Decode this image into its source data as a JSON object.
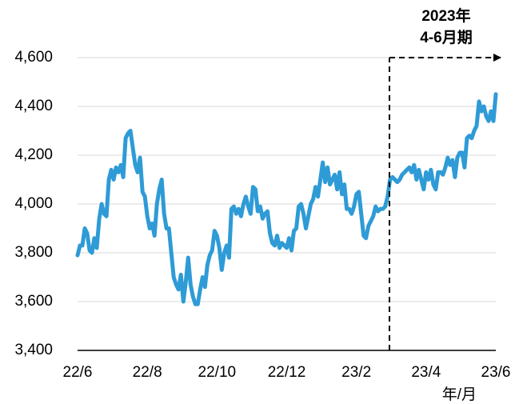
{
  "chart_data": {
    "type": "line",
    "categories": [
      "22/6",
      null,
      null,
      null,
      null,
      null,
      null,
      null,
      null,
      null,
      null,
      null,
      null,
      null,
      null,
      null,
      null,
      null,
      null,
      null,
      null,
      null,
      null,
      null,
      null,
      null,
      null,
      null,
      null,
      "22/8",
      null,
      null,
      null,
      null,
      null,
      null,
      null,
      null,
      null,
      null,
      null,
      null,
      null,
      null,
      null,
      null,
      null,
      null,
      null,
      null,
      null,
      null,
      null,
      null,
      null,
      null,
      null,
      null,
      "22/10",
      null,
      null,
      null,
      null,
      null,
      null,
      null,
      null,
      null,
      null,
      null,
      null,
      null,
      null,
      null,
      null,
      null,
      null,
      null,
      null,
      null,
      null,
      null,
      null,
      null,
      null,
      null,
      null,
      "22/12",
      null,
      null,
      null,
      null,
      null,
      null,
      null,
      null,
      null,
      null,
      null,
      null,
      null,
      null,
      null,
      null,
      null,
      null,
      null,
      null,
      null,
      null,
      null,
      null,
      null,
      null,
      null,
      null,
      "23/2",
      null,
      null,
      null,
      null,
      null,
      null,
      null,
      null,
      null,
      null,
      null,
      null,
      null,
      null,
      null,
      null,
      null,
      null,
      null,
      null,
      null,
      null,
      null,
      null,
      null,
      null,
      null,
      null,
      "23/4",
      null,
      null,
      null,
      null,
      null,
      null,
      null,
      null,
      null,
      null,
      null,
      null,
      null,
      null,
      null,
      null,
      null,
      null,
      null,
      null,
      null,
      null,
      null,
      null,
      null,
      null,
      null,
      null,
      "23/6"
    ],
    "values": [
      3790,
      3830,
      3830,
      3900,
      3880,
      3810,
      3800,
      3860,
      3820,
      3940,
      4000,
      3960,
      3950,
      4100,
      4140,
      4100,
      4150,
      4130,
      4160,
      4110,
      4270,
      4290,
      4300,
      4230,
      4160,
      4130,
      4190,
      4050,
      4030,
      3950,
      3900,
      3920,
      3870,
      4000,
      4060,
      4100,
      3960,
      3900,
      3900,
      3800,
      3700,
      3670,
      3650,
      3710,
      3600,
      3680,
      3780,
      3670,
      3620,
      3590,
      3590,
      3650,
      3700,
      3660,
      3750,
      3790,
      3810,
      3890,
      3870,
      3820,
      3730,
      3800,
      3830,
      3780,
      3980,
      3990,
      3960,
      3980,
      3950,
      4000,
      4030,
      3990,
      3960,
      4070,
      4060,
      3970,
      3990,
      3940,
      3960,
      3970,
      3880,
      3840,
      3830,
      3870,
      3820,
      3840,
      3830,
      3820,
      3860,
      3810,
      3890,
      3900,
      3990,
      4000,
      3960,
      3900,
      3950,
      4000,
      4020,
      4070,
      4030,
      4100,
      4170,
      4090,
      4150,
      4080,
      4100,
      4120,
      4060,
      4130,
      4040,
      4080,
      3980,
      3980,
      3960,
      3990,
      4040,
      4050,
      3960,
      3870,
      3860,
      3910,
      3930,
      3950,
      3990,
      3970,
      3980,
      3980,
      3990,
      4030,
      4100,
      4110,
      4100,
      4090,
      4100,
      4120,
      4130,
      4140,
      4150,
      4130,
      4160,
      4100,
      4140,
      4100,
      4060,
      4130,
      4100,
      4140,
      4080,
      4060,
      4130,
      4130,
      4120,
      4150,
      4190,
      4160,
      4180,
      4110,
      4190,
      4210,
      4210,
      4150,
      4270,
      4280,
      4270,
      4300,
      4320,
      4420,
      4380,
      4400,
      4360,
      4340,
      4380,
      4340,
      4450
    ],
    "color": "#2e9bd6",
    "xlabel": "年/月",
    "ylim": [
      3400,
      4600
    ],
    "yticks": [
      {
        "value": 3400,
        "label": "3,400"
      },
      {
        "value": 3600,
        "label": "3,600"
      },
      {
        "value": 3800,
        "label": "3,800"
      },
      {
        "value": 4000,
        "label": "4,000"
      },
      {
        "value": 4200,
        "label": "4,200"
      },
      {
        "value": 4400,
        "label": "4,400"
      },
      {
        "value": 4600,
        "label": "4,600"
      }
    ],
    "grid": true,
    "annotation": [
      "2023年",
      "4-6月期"
    ]
  }
}
